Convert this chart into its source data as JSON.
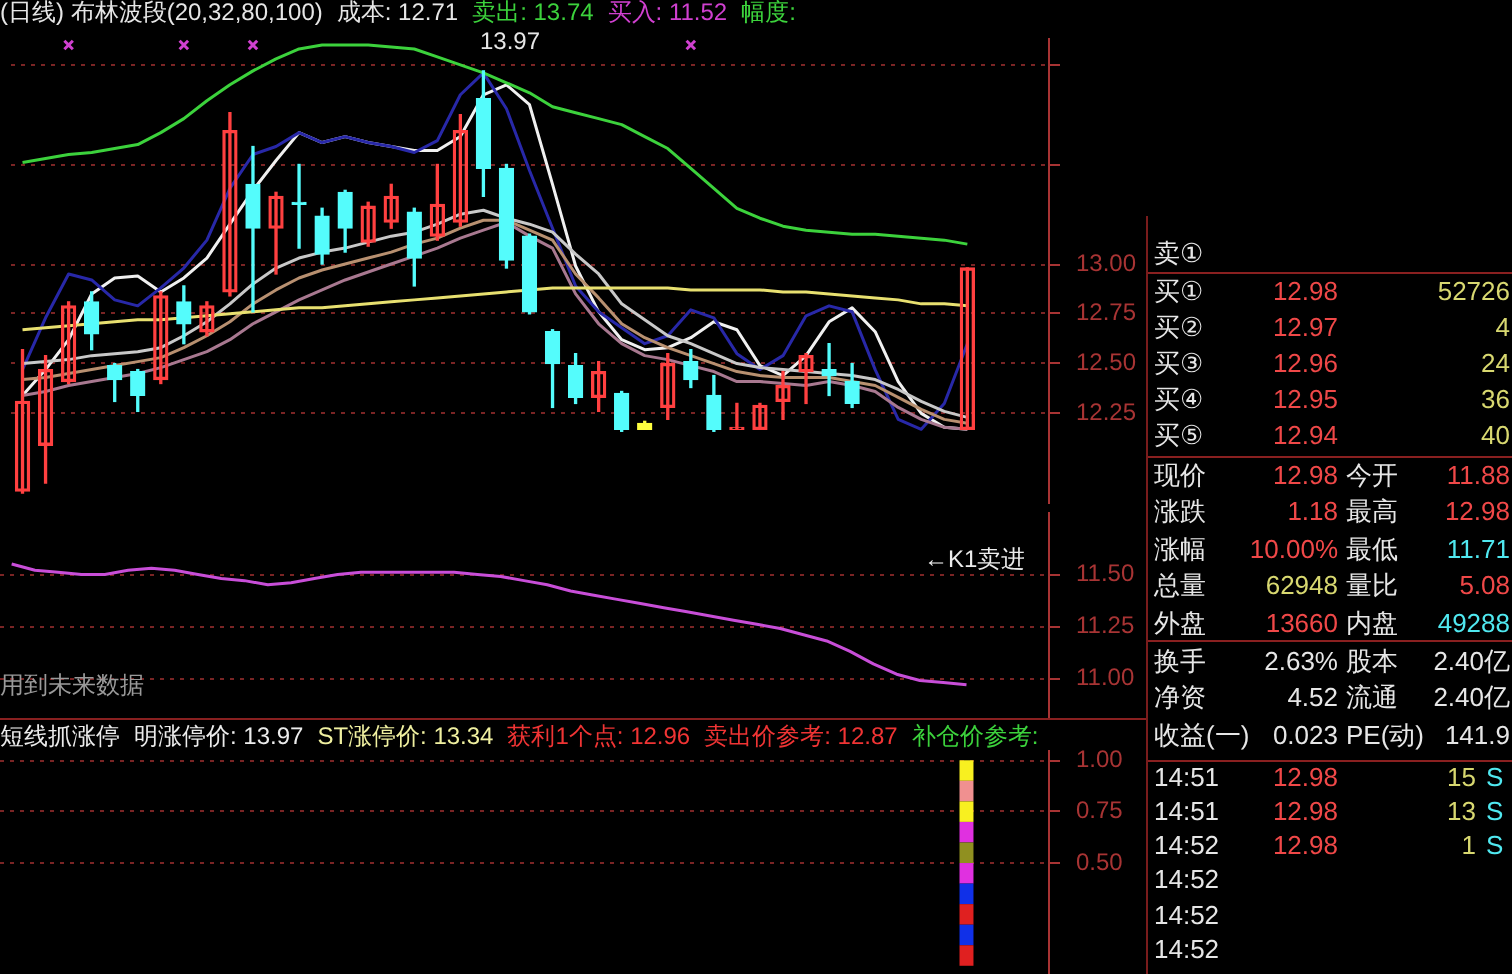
{
  "chart_data": [
    {
      "type": "candlestick",
      "title": "(日线) 布林波段(20,32,80,100)",
      "annotations": [
        "成本: 12.71",
        "卖出: 13.74",
        "买入: 11.52",
        "幅度:",
        "13.97"
      ],
      "categories": [
        null,
        null,
        null,
        null,
        null,
        null,
        null,
        null,
        null,
        null,
        null,
        null,
        null,
        null,
        null,
        null,
        null,
        null,
        null,
        null,
        null,
        null,
        null,
        null,
        null,
        null,
        null,
        null,
        null,
        null,
        null,
        null,
        null,
        null,
        null,
        null,
        null,
        null,
        null,
        null,
        null,
        null,
        null,
        null,
        null
      ],
      "ohlc": [
        [
          11.86,
          12.57,
          11.85,
          12.31
        ],
        [
          12.09,
          12.54,
          11.9,
          12.47
        ],
        [
          12.41,
          12.81,
          12.4,
          12.79
        ],
        [
          12.81,
          12.86,
          12.57,
          12.65
        ],
        [
          12.49,
          12.5,
          12.31,
          12.42
        ],
        [
          12.46,
          12.47,
          12.26,
          12.34
        ],
        [
          12.42,
          12.86,
          12.4,
          12.84
        ],
        [
          12.81,
          12.89,
          12.6,
          12.7
        ],
        [
          12.66,
          12.81,
          12.64,
          12.79
        ],
        [
          12.86,
          13.76,
          12.84,
          13.67
        ],
        [
          13.4,
          13.59,
          12.76,
          13.18
        ],
        [
          13.18,
          13.36,
          12.95,
          13.34
        ],
        [
          13.31,
          13.5,
          13.08,
          13.3
        ],
        [
          13.24,
          13.28,
          13.0,
          13.05
        ],
        [
          13.36,
          13.37,
          13.06,
          13.18
        ],
        [
          13.11,
          13.31,
          13.09,
          13.29
        ],
        [
          13.21,
          13.4,
          13.18,
          13.34
        ],
        [
          13.26,
          13.28,
          12.89,
          13.03
        ],
        [
          13.14,
          13.5,
          13.12,
          13.3
        ],
        [
          13.21,
          13.75,
          13.19,
          13.67
        ],
        [
          13.83,
          13.97,
          13.34,
          13.48
        ],
        [
          13.48,
          13.5,
          12.98,
          13.02
        ],
        [
          13.14,
          13.15,
          12.75,
          12.76
        ],
        [
          12.66,
          12.67,
          12.28,
          12.5
        ],
        [
          12.49,
          12.55,
          12.3,
          12.33
        ],
        [
          12.33,
          12.51,
          12.26,
          12.46
        ],
        [
          12.35,
          12.36,
          12.16,
          12.17
        ],
        [
          12.2,
          12.21,
          12.17,
          12.17
        ],
        [
          12.28,
          12.55,
          12.22,
          12.5
        ],
        [
          12.51,
          12.57,
          12.38,
          12.42
        ],
        [
          12.34,
          12.44,
          12.16,
          12.17
        ],
        [
          12.17,
          12.3,
          12.17,
          12.18
        ],
        [
          12.17,
          12.3,
          12.17,
          12.29
        ],
        [
          12.31,
          12.46,
          12.22,
          12.39
        ],
        [
          12.46,
          12.55,
          12.3,
          12.54
        ],
        [
          12.47,
          12.6,
          12.34,
          12.44
        ],
        [
          12.41,
          12.5,
          12.28,
          12.3
        ],
        null,
        null,
        null,
        null,
        [
          12.17,
          12.98,
          12.17,
          12.98
        ],
        null,
        null,
        null
      ],
      "colors": [
        "#ff4040",
        "#ff4040",
        "#ff4040",
        "#54fcfc",
        "#54fcfc",
        "#54fcfc",
        "#ff4040",
        "#54fcfc",
        "#ff4040",
        "#ff4040",
        "#54fcfc",
        "#ff4040",
        "#54fcfc",
        "#54fcfc",
        "#54fcfc",
        "#ff4040",
        "#ff4040",
        "#54fcfc",
        "#ff4040",
        "#ff4040",
        "#54fcfc",
        "#54fcfc",
        "#54fcfc",
        "#54fcfc",
        "#54fcfc",
        "#ff4040",
        "#54fcfc",
        "#ffff40",
        "#ff4040",
        "#54fcfc",
        "#54fcfc",
        "#ff4040",
        "#ff4040",
        "#ff4040",
        "#ff4040",
        "#54fcfc",
        "#54fcfc",
        null,
        null,
        null,
        null,
        "#ff4040",
        null,
        null,
        null
      ],
      "series": [
        {
          "type": "line",
          "color": "#3cd23c",
          "values": [
            13.51,
            13.53,
            13.55,
            13.56,
            13.58,
            13.6,
            13.66,
            13.73,
            13.82,
            13.9,
            13.97,
            14.03,
            14.08,
            14.1,
            14.1,
            14.1,
            14.09,
            14.08,
            14.04,
            14.0,
            13.96,
            13.91,
            13.86,
            13.79,
            13.76,
            13.73,
            13.7,
            13.64,
            13.58,
            13.48,
            13.38,
            13.28,
            13.23,
            13.19,
            13.17,
            13.16,
            13.15,
            13.15,
            13.14,
            13.13,
            13.12,
            13.1,
            null,
            null,
            null
          ]
        },
        {
          "type": "line",
          "color": "#e8e070",
          "values": [
            12.67,
            12.68,
            12.69,
            12.7,
            12.71,
            12.72,
            12.72,
            12.73,
            12.74,
            12.75,
            12.76,
            12.77,
            12.78,
            12.78,
            12.79,
            12.8,
            12.81,
            12.82,
            12.83,
            12.84,
            12.85,
            12.86,
            12.87,
            12.88,
            12.88,
            12.88,
            12.88,
            12.88,
            12.88,
            12.87,
            12.87,
            12.87,
            12.87,
            12.86,
            12.86,
            12.85,
            12.84,
            12.83,
            12.82,
            12.8,
            12.8,
            12.79,
            null,
            null,
            null
          ]
        },
        {
          "type": "line",
          "color": "#a87890",
          "values": [
            12.34,
            12.36,
            12.39,
            12.41,
            12.43,
            12.45,
            12.48,
            12.52,
            12.56,
            12.62,
            12.7,
            12.76,
            12.82,
            12.87,
            12.92,
            12.96,
            13.0,
            13.04,
            13.08,
            13.13,
            13.17,
            13.21,
            13.14,
            13.08,
            12.85,
            12.7,
            12.6,
            12.54,
            12.52,
            12.49,
            12.46,
            12.41,
            12.41,
            12.4,
            12.39,
            12.41,
            12.39,
            12.36,
            12.28,
            12.22,
            12.18,
            12.17,
            null,
            null,
            null
          ]
        },
        {
          "type": "line",
          "color": "#b89070",
          "values": [
            12.42,
            12.43,
            12.45,
            12.47,
            12.49,
            12.51,
            12.53,
            12.58,
            12.64,
            12.71,
            12.8,
            12.87,
            12.93,
            12.97,
            13.0,
            13.03,
            13.06,
            13.1,
            13.13,
            13.18,
            13.22,
            13.22,
            13.17,
            13.12,
            12.95,
            12.83,
            12.7,
            12.63,
            12.58,
            12.54,
            12.5,
            12.46,
            12.44,
            12.43,
            12.43,
            12.43,
            12.41,
            12.39,
            12.33,
            12.27,
            12.22,
            12.2,
            null,
            null,
            null
          ]
        },
        {
          "type": "line",
          "color": "#c8c8c8",
          "values": [
            12.5,
            12.51,
            12.52,
            12.54,
            12.55,
            12.56,
            12.58,
            12.64,
            12.71,
            12.8,
            12.9,
            12.98,
            13.03,
            13.06,
            13.08,
            13.11,
            13.14,
            13.16,
            13.2,
            13.25,
            13.27,
            13.23,
            13.2,
            13.16,
            13.05,
            12.95,
            12.8,
            12.72,
            12.64,
            12.6,
            12.55,
            12.5,
            12.48,
            12.47,
            12.46,
            12.45,
            12.44,
            12.42,
            12.37,
            12.31,
            12.26,
            12.23,
            null,
            null,
            null
          ]
        },
        {
          "type": "line",
          "color": "#2828a8",
          "values": [
            12.47,
            12.73,
            12.95,
            12.92,
            12.82,
            12.79,
            12.88,
            12.98,
            13.12,
            13.38,
            13.55,
            13.59,
            13.66,
            13.61,
            13.64,
            13.61,
            13.59,
            13.56,
            13.62,
            13.85,
            13.96,
            13.78,
            13.47,
            13.18,
            12.89,
            12.76,
            12.68,
            12.6,
            12.64,
            12.77,
            12.73,
            12.55,
            12.47,
            12.54,
            12.74,
            12.79,
            12.76,
            12.47,
            12.22,
            12.17,
            12.3,
            12.6,
            null,
            null,
            null
          ]
        },
        {
          "type": "line",
          "color": "#f0f0f0",
          "values": [
            12.34,
            12.47,
            12.62,
            12.85,
            12.93,
            12.94,
            12.86,
            12.93,
            13.03,
            13.2,
            13.37,
            13.52,
            13.66,
            13.61,
            13.64,
            13.61,
            13.59,
            13.57,
            13.57,
            13.64,
            13.85,
            13.9,
            13.8,
            13.4,
            12.99,
            12.76,
            12.62,
            12.57,
            12.58,
            12.63,
            12.71,
            12.67,
            12.49,
            12.44,
            12.54,
            12.71,
            12.78,
            12.66,
            12.41,
            12.25,
            12.18,
            12.17,
            null,
            null,
            null
          ]
        },
        {
          "type": "scatter",
          "color": "#d040d0",
          "marker": "cross",
          "values": [
            null,
            null,
            14.1,
            null,
            null,
            null,
            null,
            14.1,
            null,
            null,
            14.1,
            null,
            null,
            null,
            null,
            null,
            null,
            null,
            null,
            null,
            null,
            null,
            null,
            null,
            null,
            null,
            null,
            null,
            null,
            14.1,
            null,
            null,
            null,
            null,
            null,
            null,
            null,
            null,
            null,
            null,
            null,
            null,
            null,
            null,
            null
          ]
        }
      ],
      "ylim": [
        11.8,
        14.13
      ],
      "yticks": [
        12.25,
        {
          "value": 12.5,
          "label": "12.50"
        },
        12.75,
        {
          "value": 13,
          "label": "13.00"
        },
        {
          "value": 13.5,
          "label": null
        },
        {
          "value": 14,
          "label": null
        }
      ],
      "grid": "y",
      "tick_labels": "y"
    },
    {
      "type": "line",
      "annotations": [
        "用到未来数据",
        "←K1卖进"
      ],
      "categories": [
        null,
        null,
        null,
        null,
        null,
        null,
        null,
        null,
        null,
        null,
        null,
        null,
        null,
        null,
        null,
        null,
        null,
        null,
        null,
        null,
        null,
        null,
        null,
        null,
        null,
        null,
        null,
        null,
        null,
        null,
        null,
        null,
        null,
        null,
        null,
        null,
        null,
        null,
        null,
        null,
        null,
        null,
        null,
        null,
        null
      ],
      "color": "#c84ed8",
      "values": [
        11.55,
        11.52,
        11.51,
        11.5,
        11.5,
        11.52,
        11.53,
        11.52,
        11.5,
        11.48,
        11.47,
        11.45,
        11.46,
        11.48,
        11.5,
        11.51,
        11.51,
        11.51,
        11.51,
        11.51,
        11.5,
        11.49,
        11.47,
        11.45,
        11.42,
        11.4,
        11.38,
        11.36,
        11.34,
        11.32,
        11.3,
        11.28,
        11.26,
        11.24,
        11.21,
        11.18,
        11.13,
        11.07,
        11.02,
        10.99,
        10.98,
        10.97,
        null,
        null,
        null
      ],
      "ylim": [
        10.8,
        11.8
      ],
      "yticks": [
        {
          "value": 11,
          "label": "11.00"
        },
        11.25,
        {
          "value": 11.5,
          "label": "11.50"
        }
      ],
      "grid": "y",
      "tick_labels": "y"
    },
    {
      "type": "bar",
      "title": "短线抓涨停",
      "annotations": [
        "明涨停价: 13.97",
        "ST涨停价: 13.34",
        "获利1个点: 12.96",
        "卖出价参考: 12.87",
        "补仓价参考:"
      ],
      "categories": [
        null,
        null,
        null,
        null,
        null,
        null,
        null,
        null,
        null,
        null,
        null,
        null,
        null,
        null,
        null,
        null,
        null,
        null,
        null,
        null,
        null,
        null,
        null,
        null,
        null,
        null,
        null,
        null,
        null,
        null,
        null,
        null,
        null,
        null,
        null,
        null,
        null,
        null,
        null,
        null,
        null,
        null,
        null,
        null,
        null
      ],
      "stacked": true,
      "series": [
        {
          "color": "#e02020",
          "values": [
            null,
            null,
            null,
            null,
            null,
            null,
            null,
            null,
            null,
            null,
            null,
            null,
            null,
            null,
            null,
            null,
            null,
            null,
            null,
            null,
            null,
            null,
            null,
            null,
            null,
            null,
            null,
            null,
            null,
            null,
            null,
            null,
            null,
            null,
            null,
            null,
            null,
            null,
            null,
            null,
            null,
            0.1,
            null,
            null,
            null
          ]
        },
        {
          "color": "#1030e8",
          "values": [
            null,
            null,
            null,
            null,
            null,
            null,
            null,
            null,
            null,
            null,
            null,
            null,
            null,
            null,
            null,
            null,
            null,
            null,
            null,
            null,
            null,
            null,
            null,
            null,
            null,
            null,
            null,
            null,
            null,
            null,
            null,
            null,
            null,
            null,
            null,
            null,
            null,
            null,
            null,
            null,
            null,
            0.1,
            null,
            null,
            null
          ]
        },
        {
          "color": "#e02020",
          "values": [
            null,
            null,
            null,
            null,
            null,
            null,
            null,
            null,
            null,
            null,
            null,
            null,
            null,
            null,
            null,
            null,
            null,
            null,
            null,
            null,
            null,
            null,
            null,
            null,
            null,
            null,
            null,
            null,
            null,
            null,
            null,
            null,
            null,
            null,
            null,
            null,
            null,
            null,
            null,
            null,
            null,
            0.1,
            null,
            null,
            null
          ]
        },
        {
          "color": "#1030e8",
          "values": [
            null,
            null,
            null,
            null,
            null,
            null,
            null,
            null,
            null,
            null,
            null,
            null,
            null,
            null,
            null,
            null,
            null,
            null,
            null,
            null,
            null,
            null,
            null,
            null,
            null,
            null,
            null,
            null,
            null,
            null,
            null,
            null,
            null,
            null,
            null,
            null,
            null,
            null,
            null,
            null,
            null,
            0.1,
            null,
            null,
            null
          ]
        },
        {
          "color": "#e030e0",
          "values": [
            null,
            null,
            null,
            null,
            null,
            null,
            null,
            null,
            null,
            null,
            null,
            null,
            null,
            null,
            null,
            null,
            null,
            null,
            null,
            null,
            null,
            null,
            null,
            null,
            null,
            null,
            null,
            null,
            null,
            null,
            null,
            null,
            null,
            null,
            null,
            null,
            null,
            null,
            null,
            null,
            null,
            0.1,
            null,
            null,
            null
          ]
        },
        {
          "color": "#909020",
          "values": [
            null,
            null,
            null,
            null,
            null,
            null,
            null,
            null,
            null,
            null,
            null,
            null,
            null,
            null,
            null,
            null,
            null,
            null,
            null,
            null,
            null,
            null,
            null,
            null,
            null,
            null,
            null,
            null,
            null,
            null,
            null,
            null,
            null,
            null,
            null,
            null,
            null,
            null,
            null,
            null,
            null,
            0.1,
            null,
            null,
            null
          ]
        },
        {
          "color": "#e030e0",
          "values": [
            null,
            null,
            null,
            null,
            null,
            null,
            null,
            null,
            null,
            null,
            null,
            null,
            null,
            null,
            null,
            null,
            null,
            null,
            null,
            null,
            null,
            null,
            null,
            null,
            null,
            null,
            null,
            null,
            null,
            null,
            null,
            null,
            null,
            null,
            null,
            null,
            null,
            null,
            null,
            null,
            null,
            0.1,
            null,
            null,
            null
          ]
        },
        {
          "color": "#f8f020",
          "values": [
            null,
            null,
            null,
            null,
            null,
            null,
            null,
            null,
            null,
            null,
            null,
            null,
            null,
            null,
            null,
            null,
            null,
            null,
            null,
            null,
            null,
            null,
            null,
            null,
            null,
            null,
            null,
            null,
            null,
            null,
            null,
            null,
            null,
            null,
            null,
            null,
            null,
            null,
            null,
            null,
            null,
            0.1,
            null,
            null,
            null
          ]
        },
        {
          "color": "#f09090",
          "values": [
            null,
            null,
            null,
            null,
            null,
            null,
            null,
            null,
            null,
            null,
            null,
            null,
            null,
            null,
            null,
            null,
            null,
            null,
            null,
            null,
            null,
            null,
            null,
            null,
            null,
            null,
            null,
            null,
            null,
            null,
            null,
            null,
            null,
            null,
            null,
            null,
            null,
            null,
            null,
            null,
            null,
            0.1,
            null,
            null,
            null
          ]
        },
        {
          "color": "#f8f020",
          "values": [
            null,
            null,
            null,
            null,
            null,
            null,
            null,
            null,
            null,
            null,
            null,
            null,
            null,
            null,
            null,
            null,
            null,
            null,
            null,
            null,
            null,
            null,
            null,
            null,
            null,
            null,
            null,
            null,
            null,
            null,
            null,
            null,
            null,
            null,
            null,
            null,
            null,
            null,
            null,
            null,
            null,
            0.1,
            null,
            null,
            null
          ]
        }
      ],
      "ylim": [
        -0.04,
        1.05
      ],
      "yticks": [
        {
          "value": 0.5,
          "label": "0.50"
        },
        0.75,
        {
          "value": 1,
          "label": "1.00"
        }
      ],
      "grid": "y",
      "tick_labels": "y"
    },
    {
      "type": "other",
      "annotations": [
        "卖①",
        "买① 12.98",
        "52726",
        "买② 12.97",
        "4",
        "买③ 12.96",
        "24",
        "买④ 12.95",
        "36",
        "买⑤ 12.94",
        "40",
        "现价",
        "12.98",
        "今开",
        "11.88",
        "涨跌",
        "1.18",
        "最高",
        "12.98",
        "涨幅",
        "10.00%",
        "最低",
        "11.71",
        "总量",
        "62948",
        "量比",
        "5.08",
        "外盘",
        "13660",
        "内盘",
        "49288",
        "换手",
        "2.63%",
        "股本",
        "2.40亿",
        "净资",
        "4.52",
        "流通",
        "2.40亿",
        "收益(一)",
        "0.023",
        "PE(动)",
        "141.9",
        "14:51",
        "12.98",
        "15",
        "S",
        "14:51",
        "12.98",
        "13",
        "S",
        "14:52",
        "12.98",
        "1",
        "S",
        "14:52",
        "14:52",
        "14:52"
      ]
    }
  ]
}
